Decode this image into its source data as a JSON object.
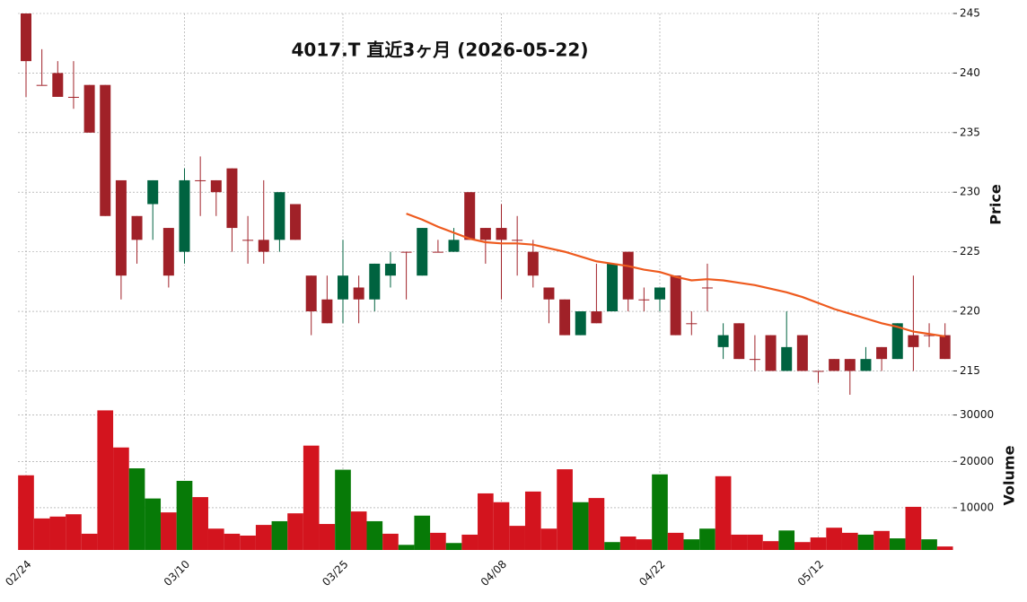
{
  "chart_data": {
    "type": "candlestick",
    "title": "4017.T  直近3ヶ月  (2026-05-22)",
    "categories": [
      "02/24",
      null,
      null,
      null,
      null,
      null,
      null,
      null,
      null,
      null,
      "03/10",
      null,
      null,
      null,
      null,
      null,
      null,
      null,
      null,
      null,
      "03/25",
      null,
      null,
      null,
      null,
      null,
      null,
      null,
      null,
      null,
      "04/08",
      null,
      null,
      null,
      null,
      null,
      null,
      null,
      null,
      null,
      "04/22",
      null,
      null,
      null,
      null,
      null,
      null,
      null,
      null,
      null,
      "05/12",
      null,
      null,
      null,
      null,
      null,
      null,
      null,
      null
    ],
    "open": [
      245,
      239,
      240,
      238,
      239,
      239,
      231,
      228,
      229,
      227,
      225,
      231,
      231,
      232,
      226,
      226,
      226,
      229,
      223,
      221,
      221,
      222,
      221,
      223,
      225,
      223,
      225,
      225,
      230,
      227,
      227,
      226,
      225,
      222,
      221,
      218,
      220,
      220,
      225,
      221,
      221,
      223,
      219,
      222,
      217,
      219,
      216,
      218,
      215,
      218,
      215,
      216,
      216,
      215,
      217,
      216,
      218,
      218,
      218
    ],
    "high": [
      245,
      242,
      241,
      241,
      239,
      239,
      231,
      228,
      231,
      227,
      232,
      233,
      231,
      232,
      228,
      231,
      230,
      229,
      223,
      223,
      226,
      223,
      224,
      225,
      225,
      227,
      226,
      227,
      230,
      227,
      229,
      228,
      226,
      222,
      221,
      220,
      224,
      224,
      225,
      222,
      222,
      223,
      220,
      224,
      219,
      219,
      218,
      218,
      220,
      218,
      215,
      216,
      216,
      217,
      217,
      219,
      223,
      219,
      219
    ],
    "low": [
      238,
      239,
      238,
      237,
      235,
      228,
      221,
      224,
      226,
      222,
      224,
      228,
      228,
      225,
      224,
      224,
      225,
      226,
      218,
      219,
      219,
      219,
      220,
      222,
      221,
      223,
      225,
      225,
      226,
      224,
      221,
      223,
      222,
      219,
      218,
      218,
      219,
      220,
      220,
      220,
      220,
      218,
      218,
      220,
      216,
      216,
      215,
      215,
      215,
      215,
      214,
      215,
      213,
      215,
      215,
      216,
      215,
      217,
      216
    ],
    "close": [
      241,
      239,
      238,
      238,
      235,
      228,
      223,
      226,
      231,
      223,
      231,
      231,
      230,
      227,
      226,
      225,
      230,
      226,
      220,
      219,
      223,
      221,
      224,
      224,
      225,
      227,
      225,
      226,
      226,
      226,
      226,
      226,
      223,
      221,
      218,
      220,
      219,
      224,
      221,
      221,
      222,
      218,
      219,
      222,
      218,
      216,
      216,
      215,
      217,
      215,
      215,
      215,
      215,
      216,
      216,
      219,
      217,
      218,
      216
    ],
    "up_color": "#006340",
    "down_color": "#a02128",
    "ma": {
      "color": "#ee5a1e",
      "values": [
        null,
        null,
        null,
        null,
        null,
        null,
        null,
        null,
        null,
        null,
        null,
        null,
        null,
        null,
        null,
        null,
        null,
        null,
        null,
        null,
        null,
        null,
        null,
        null,
        228.2,
        227.7,
        227.1,
        226.6,
        226.1,
        225.8,
        225.7,
        225.7,
        225.6,
        225.3,
        225.0,
        224.6,
        224.2,
        224.0,
        223.8,
        223.5,
        223.3,
        222.9,
        222.6,
        222.7,
        222.6,
        222.4,
        222.2,
        221.9,
        221.6,
        221.2,
        220.7,
        220.2,
        219.8,
        219.4,
        219.0,
        218.7,
        218.3,
        218.1,
        217.9
      ]
    },
    "volume": {
      "values": [
        17000,
        7700,
        8100,
        8600,
        4400,
        31000,
        23000,
        18500,
        12000,
        9000,
        15800,
        12300,
        5500,
        4400,
        4000,
        6300,
        7100,
        8800,
        23400,
        6500,
        18200,
        9200,
        7100,
        4400,
        2000,
        8300,
        4600,
        2400,
        4200,
        13100,
        11200,
        6100,
        13500,
        5500,
        18300,
        11200,
        12100,
        2600,
        3800,
        3200,
        17200,
        4600,
        3200,
        5500,
        16800,
        4200,
        4200,
        2800,
        5100,
        2600,
        3600,
        5700,
        4600,
        4200,
        5000,
        3400,
        10200,
        3200,
        1650
      ],
      "colors": [
        "#d3141e",
        "#d3141e",
        "#d3141e",
        "#d3141e",
        "#d3141e",
        "#d3141e",
        "#d3141e",
        "#077a07",
        "#077a07",
        "#d3141e",
        "#077a07",
        "#d3141e",
        "#d3141e",
        "#d3141e",
        "#d3141e",
        "#d3141e",
        "#077a07",
        "#d3141e",
        "#d3141e",
        "#d3141e",
        "#077a07",
        "#d3141e",
        "#077a07",
        "#d3141e",
        "#077a07",
        "#077a07",
        "#d3141e",
        "#077a07",
        "#d3141e",
        "#d3141e",
        "#d3141e",
        "#d3141e",
        "#d3141e",
        "#d3141e",
        "#d3141e",
        "#077a07",
        "#d3141e",
        "#077a07",
        "#d3141e",
        "#d3141e",
        "#077a07",
        "#d3141e",
        "#077a07",
        "#077a07",
        "#d3141e",
        "#d3141e",
        "#d3141e",
        "#d3141e",
        "#077a07",
        "#d3141e",
        "#d3141e",
        "#d3141e",
        "#d3141e",
        "#077a07",
        "#d3141e",
        "#077a07",
        "#d3141e",
        "#077a07",
        "#d3141e"
      ]
    },
    "ylabel": "Price",
    "ylim": [
      213,
      245
    ],
    "yticks": [
      215,
      220,
      225,
      230,
      235,
      240,
      245
    ],
    "y2label": "Volume",
    "y2lim": [
      900,
      33400
    ],
    "y2ticks": [
      10000,
      20000,
      30000
    ],
    "grid": true
  }
}
